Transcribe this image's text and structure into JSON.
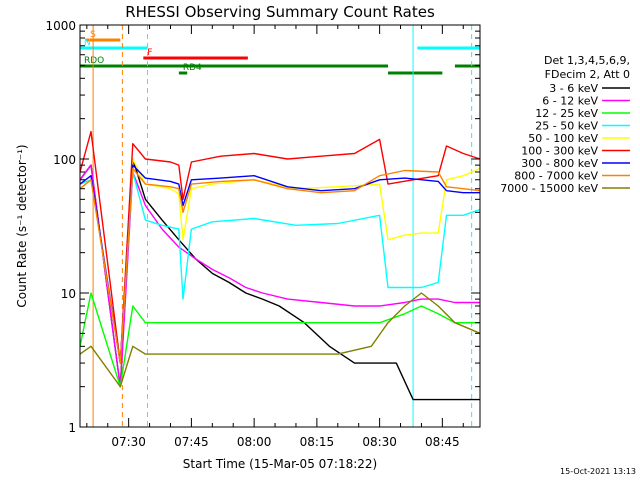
{
  "chart_data": {
    "type": "line",
    "title": "RHESSI Observing Summary Count Rates",
    "xlabel": "Start Time (15-Mar-05 07:18:22)",
    "ylabel": "Count Rate (s⁻¹ detector⁻¹)",
    "y_scale": "log",
    "ylim": [
      1,
      1000
    ],
    "xlim": [
      "07:18:22",
      "08:54:00"
    ],
    "yticks": [
      "1",
      "10",
      "100",
      "1000"
    ],
    "xticks": [
      "07:30",
      "07:45",
      "08:00",
      "08:15",
      "08:30",
      "08:45"
    ],
    "footer_date": "15-Oct-2021 13:13",
    "legend_header": [
      "Det 1,3,4,5,6,9,",
      "FDecim 2, Att 0"
    ],
    "flags": [
      {
        "label": "S",
        "color": "#ff8000",
        "t_start": "07:19:50",
        "t_end": "07:28:00"
      },
      {
        "label": "N",
        "color": "#00ffff",
        "t_start": "07:18:22",
        "t_end": "07:34:30"
      },
      {
        "label": "N",
        "color": "#00ffff",
        "t_start": "08:39:00",
        "t_end": "08:54:00"
      },
      {
        "label": "F",
        "color": "#ff0000",
        "t_start": "07:33:30",
        "t_end": "07:58:30"
      },
      {
        "label": "RDO",
        "color": "#008000",
        "t_start": "07:18:22",
        "t_end": "08:32:00"
      },
      {
        "label": "RDO",
        "color": "#008000",
        "t_start": "08:48:00",
        "t_end": "08:54:00"
      },
      {
        "label": "RD4",
        "color": "#008000",
        "t_start": "07:42:00",
        "t_end": "07:44:00"
      },
      {
        "label": "RD4",
        "color": "#008000",
        "t_start": "08:32:00",
        "t_end": "08:45:00"
      }
    ],
    "vlines": [
      {
        "t": "07:18:22",
        "color": "#00ffff",
        "style": "dashed"
      },
      {
        "t": "07:21:30",
        "color": "#ff8000",
        "style": "solid"
      },
      {
        "t": "07:28:30",
        "color": "#ff8000",
        "style": "dashed"
      },
      {
        "t": "07:34:30",
        "color": "#00ffff",
        "style": "dashed"
      },
      {
        "t": "08:38:00",
        "color": "#00ffff",
        "style": "solid"
      },
      {
        "t": "08:52:00",
        "color": "#00ffff",
        "style": "dashed"
      }
    ],
    "series": [
      {
        "name": "3 - 6 keV",
        "color": "#000000",
        "t": [
          "07:18:22",
          "07:21:00",
          "07:28:00",
          "07:31:00",
          "07:34:00",
          "07:38:00",
          "07:42:00",
          "07:46:00",
          "07:50:00",
          "07:54:00",
          "07:58:00",
          "08:02:00",
          "08:06:00",
          "08:12:00",
          "08:18:00",
          "08:24:00",
          "08:30:00",
          "08:34:00",
          "08:38:00",
          "08:42:00",
          "08:46:00",
          "08:50:00",
          "08:54:00"
        ],
        "values": [
          70,
          90,
          2,
          100,
          50,
          35,
          25,
          18,
          14,
          12,
          10,
          9,
          8,
          6,
          4,
          3,
          3,
          3,
          1.6,
          1.6,
          1.6,
          1.6,
          1.6
        ]
      },
      {
        "name": "6 - 12 keV",
        "color": "#ff00ff",
        "t": [
          "07:18:22",
          "07:21:00",
          "07:28:00",
          "07:31:00",
          "07:34:00",
          "07:38:00",
          "07:42:00",
          "07:46:00",
          "07:50:00",
          "07:54:00",
          "07:58:00",
          "08:02:00",
          "08:08:00",
          "08:16:00",
          "08:24:00",
          "08:30:00",
          "08:36:00",
          "08:40:00",
          "08:44:00",
          "08:48:00",
          "08:54:00"
        ],
        "values": [
          70,
          90,
          2,
          80,
          45,
          30,
          22,
          18,
          15,
          13,
          11,
          10,
          9,
          8.5,
          8,
          8,
          8.5,
          9,
          9,
          8.5,
          8.5
        ]
      },
      {
        "name": "12 - 25 keV",
        "color": "#00ff00",
        "t": [
          "07:18:22",
          "07:21:00",
          "07:28:00",
          "07:31:00",
          "07:34:00",
          "07:40:00",
          "07:50:00",
          "08:00:00",
          "08:10:00",
          "08:20:00",
          "08:30:00",
          "08:36:00",
          "08:40:00",
          "08:44:00",
          "08:48:00",
          "08:54:00"
        ],
        "values": [
          4,
          10,
          2,
          8,
          6,
          6,
          6,
          6,
          6,
          6,
          6,
          7,
          8,
          7,
          6,
          6
        ]
      },
      {
        "name": "25 - 50 keV",
        "color": "#00ffff",
        "t": [
          "07:18:22",
          "07:21:00",
          "07:28:00",
          "07:31:00",
          "07:34:00",
          "07:38:00",
          "07:42:00",
          "07:43:00",
          "07:45:00",
          "07:50:00",
          "08:00:00",
          "08:10:00",
          "08:20:00",
          "08:30:00",
          "08:32:00",
          "08:36:00",
          "08:40:00",
          "08:44:00",
          "08:46:00",
          "08:50:00",
          "08:54:00"
        ],
        "values": [
          65,
          70,
          3,
          80,
          35,
          32,
          30,
          9,
          30,
          34,
          36,
          32,
          33,
          38,
          11,
          11,
          11,
          12,
          38,
          38,
          42
        ]
      },
      {
        "name": "50 - 100 keV",
        "color": "#ffff00",
        "t": [
          "07:18:22",
          "07:21:00",
          "07:28:00",
          "07:31:00",
          "07:34:00",
          "07:40:00",
          "07:42:00",
          "07:43:00",
          "07:45:00",
          "07:50:00",
          "08:00:00",
          "08:10:00",
          "08:20:00",
          "08:30:00",
          "08:32:00",
          "08:36:00",
          "08:40:00",
          "08:44:00",
          "08:46:00",
          "08:50:00",
          "08:54:00"
        ],
        "values": [
          60,
          70,
          3,
          100,
          65,
          60,
          55,
          25,
          60,
          65,
          70,
          60,
          62,
          65,
          25,
          27,
          28,
          28,
          70,
          75,
          85
        ]
      },
      {
        "name": "100 - 300 keV",
        "color": "#ff0000",
        "t": [
          "07:18:22",
          "07:21:00",
          "07:28:00",
          "07:31:00",
          "07:34:00",
          "07:40:00",
          "07:42:00",
          "07:43:00",
          "07:45:00",
          "07:52:00",
          "08:00:00",
          "08:08:00",
          "08:16:00",
          "08:24:00",
          "08:30:00",
          "08:32:00",
          "08:38:00",
          "08:44:00",
          "08:46:00",
          "08:50:00",
          "08:54:00"
        ],
        "values": [
          80,
          160,
          3,
          130,
          100,
          95,
          90,
          50,
          95,
          105,
          110,
          100,
          105,
          110,
          140,
          65,
          70,
          75,
          125,
          110,
          100
        ]
      },
      {
        "name": "300 - 800 keV",
        "color": "#0000ff",
        "t": [
          "07:18:22",
          "07:21:00",
          "07:28:00",
          "07:31:00",
          "07:34:00",
          "07:40:00",
          "07:42:00",
          "07:43:00",
          "07:45:00",
          "07:52:00",
          "08:00:00",
          "08:08:00",
          "08:16:00",
          "08:24:00",
          "08:30:00",
          "08:36:00",
          "08:44:00",
          "08:46:00",
          "08:50:00",
          "08:54:00"
        ],
        "values": [
          65,
          75,
          3,
          90,
          72,
          68,
          65,
          45,
          70,
          72,
          75,
          62,
          58,
          60,
          70,
          72,
          68,
          58,
          56,
          56
        ]
      },
      {
        "name": "800 - 7000 keV",
        "color": "#ff8000",
        "t": [
          "07:18:22",
          "07:21:00",
          "07:28:00",
          "07:31:00",
          "07:34:00",
          "07:40:00",
          "07:42:00",
          "07:43:00",
          "07:45:00",
          "07:52:00",
          "08:00:00",
          "08:08:00",
          "08:16:00",
          "08:24:00",
          "08:30:00",
          "08:36:00",
          "08:44:00",
          "08:46:00",
          "08:50:00",
          "08:54:00"
        ],
        "values": [
          60,
          70,
          3,
          85,
          65,
          62,
          60,
          40,
          65,
          68,
          70,
          60,
          56,
          58,
          75,
          82,
          80,
          62,
          60,
          58
        ]
      },
      {
        "name": "7000 - 15000 keV",
        "color": "#808000",
        "t": [
          "07:18:22",
          "07:21:00",
          "07:28:00",
          "07:31:00",
          "07:34:00",
          "07:40:00",
          "07:50:00",
          "08:00:00",
          "08:10:00",
          "08:20:00",
          "08:28:00",
          "08:32:00",
          "08:36:00",
          "08:40:00",
          "08:44:00",
          "08:48:00",
          "08:54:00"
        ],
        "values": [
          3.5,
          4,
          2,
          4,
          3.5,
          3.5,
          3.5,
          3.5,
          3.5,
          3.5,
          4,
          6,
          8,
          10,
          8,
          6,
          5
        ]
      }
    ]
  }
}
